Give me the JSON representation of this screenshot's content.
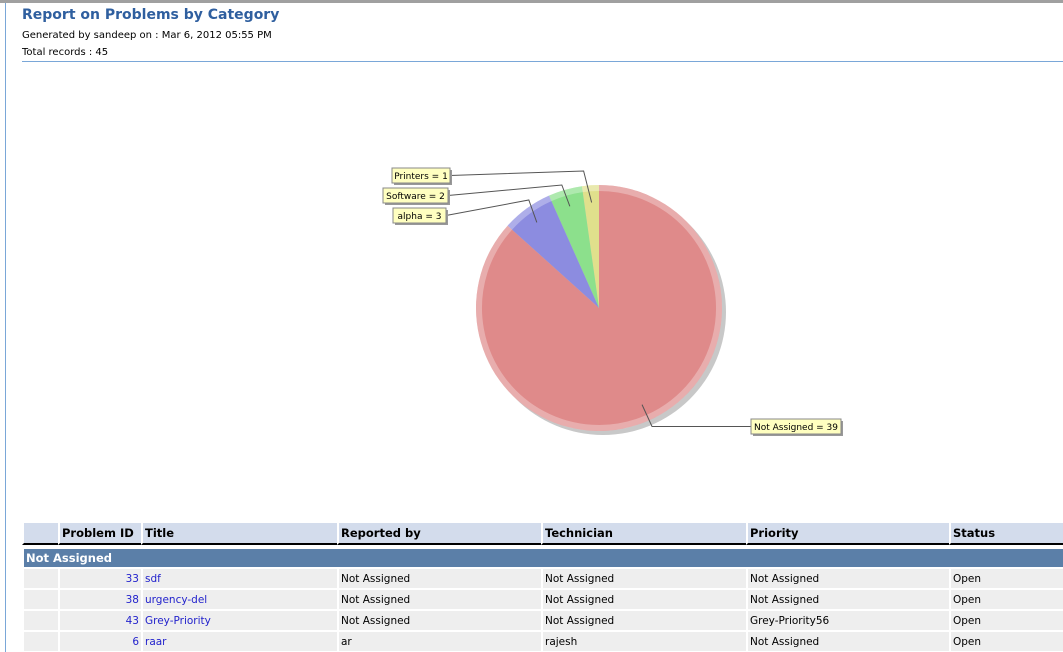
{
  "report": {
    "title": "Report on Problems by Category",
    "generated": "Generated by sandeep  on : Mar 6, 2012 05:55 PM",
    "total": "Total records : 45"
  },
  "chart_data": {
    "type": "pie",
    "title": "",
    "slices": [
      {
        "label": "Printers = 1",
        "name": "Printers",
        "value": 1,
        "color": "#e0e08c"
      },
      {
        "label": "Software = 2",
        "name": "Software",
        "value": 2,
        "color": "#8ce08c"
      },
      {
        "label": "alpha = 3",
        "name": "alpha",
        "value": 3,
        "color": "#8c8ce0"
      },
      {
        "label": "Not Assigned = 39",
        "name": "Not Assigned",
        "value": 39,
        "color": "#df8a8a"
      }
    ]
  },
  "table": {
    "headers": [
      "",
      "Problem ID",
      "Title",
      "Reported by",
      "Technician",
      "Priority",
      "Status"
    ],
    "group": "Not Assigned",
    "rows": [
      [
        "",
        "33",
        "sdf",
        "Not Assigned",
        "Not Assigned",
        "Not Assigned",
        "Open"
      ],
      [
        "",
        "38",
        "urgency-del",
        "Not Assigned",
        "Not Assigned",
        "Not Assigned",
        "Open"
      ],
      [
        "",
        "43",
        "Grey-Priority",
        "Not Assigned",
        "Not Assigned",
        "Grey-Priority56",
        "Open"
      ],
      [
        "",
        "6",
        "raar",
        "ar",
        "rajesh",
        "Not Assigned",
        "Open"
      ]
    ]
  }
}
